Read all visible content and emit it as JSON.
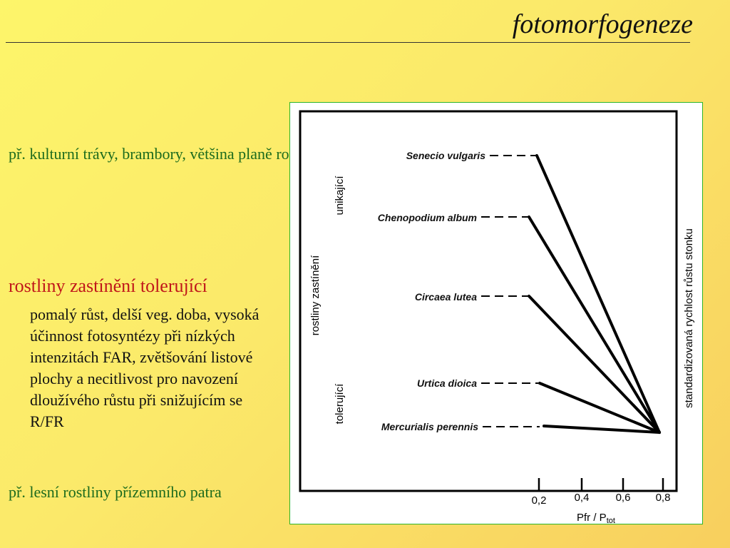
{
  "title": "fotomorfogeneze",
  "text_blocks": {
    "example_avoiding": "př. kulturní trávy, brambory, většina planě rostoucích bylin",
    "tolerant_heading": "rostliny zastínění tolerující",
    "tolerant_description": "pomalý růst, delší veg. doba, vysoká účinnost fotosyntézy při nízkých intenzitách FAR, zvětšování listové plochy  a necitlivost pro navození dloužívého růstu při snižujícím se R/FR",
    "example_tolerant": "př. lesní rostliny přízemního patra"
  },
  "diagram": {
    "left_axis_label": "rostliny zastínění",
    "group_upper_label": "unikající",
    "group_lower_label": "tolerující",
    "right_axis_label": "standardizovaná  rychlost  růstu  stonku",
    "x_axis_label_main": "Pfr / P",
    "x_axis_label_sub": "tot",
    "x_ticks": [
      "0,2",
      "0,4",
      "0,6",
      "0,8"
    ],
    "species": [
      "Senecio vulgaris",
      "Chenopodium album",
      "Circaea lutea",
      "Urtica dioica",
      "Mercurialis perennis"
    ],
    "line_color": "#000000",
    "panel_border_color": "#2bb52b"
  }
}
